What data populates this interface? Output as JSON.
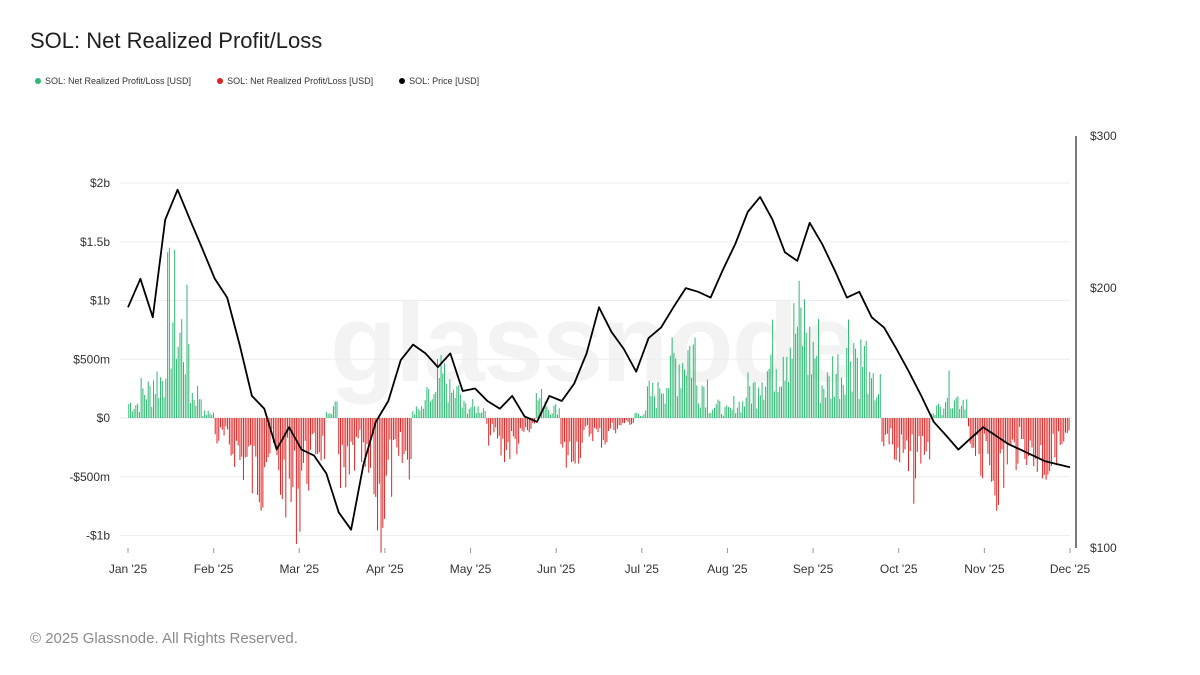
{
  "title": "SOL: Net Realized Profit/Loss",
  "legend": [
    {
      "label": "SOL: Net Realized Profit/Loss [USD]",
      "color": "#2eb872"
    },
    {
      "label": "SOL: Net Realized Profit/Loss [USD]",
      "color": "#e02424"
    },
    {
      "label": "SOL: Price [USD]",
      "color": "#000000"
    }
  ],
  "watermark": "glassnode",
  "footer": "© 2025 Glassnode. All Rights Reserved.",
  "chart_data": {
    "type": "bar",
    "x_ticks": [
      "Jan '25",
      "Feb '25",
      "Mar '25",
      "Apr '25",
      "May '25",
      "Jun '25",
      "Jul '25",
      "Aug '25",
      "Sep '25",
      "Oct '25",
      "Nov '25",
      "Dec '25"
    ],
    "y_left_ticks": [
      {
        "value": 2000000000,
        "label": "$2b"
      },
      {
        "value": 1500000000,
        "label": "$1.5b"
      },
      {
        "value": 1000000000,
        "label": "$1b"
      },
      {
        "value": 500000000,
        "label": "$500m"
      },
      {
        "value": 0,
        "label": "$0"
      },
      {
        "value": -500000000,
        "label": "-$500m"
      },
      {
        "value": -1000000000,
        "label": "-$1b"
      }
    ],
    "y_right_ticks": [
      {
        "value": 300,
        "label": "$300"
      },
      {
        "value": 200,
        "label": "$200"
      },
      {
        "value": 100,
        "label": "$100"
      }
    ],
    "y_left_range": [
      -1100000000,
      2300000000
    ],
    "y_right_range": [
      100,
      300
    ],
    "y_right_scale": "log",
    "colors": {
      "positive": "#2eb872",
      "negative": "#e02424",
      "price": "#000000"
    },
    "grid": true,
    "start_date": "2025-01-01",
    "nrpl_weekly_millions": [
      150,
      280,
      400,
      1100,
      850,
      250,
      50,
      -200,
      -320,
      -450,
      -600,
      -350,
      -650,
      -800,
      -500,
      -300,
      120,
      -750,
      -400,
      -600,
      -900,
      -550,
      -420,
      80,
      200,
      400,
      250,
      120,
      100,
      -180,
      -300,
      -250,
      -150,
      200,
      100,
      -400,
      -300,
      -150,
      -200,
      -100,
      -50,
      50,
      250,
      400,
      600,
      700,
      350,
      120,
      80,
      150,
      300,
      500,
      650,
      850,
      950,
      700,
      350,
      500,
      800,
      600,
      300,
      -200,
      -400,
      -550,
      -300,
      100,
      300,
      200,
      -250,
      -500,
      -600,
      -350,
      -300,
      -400,
      -450,
      -300,
      -200
    ],
    "price_weekly": [
      190,
      205,
      185,
      240,
      260,
      240,
      222,
      205,
      195,
      172,
      150,
      145,
      130,
      138,
      130,
      128,
      122,
      110,
      105,
      125,
      140,
      148,
      165,
      172,
      168,
      162,
      168,
      152,
      153,
      148,
      145,
      150,
      142,
      140,
      150,
      148,
      155,
      168,
      190,
      178,
      170,
      160,
      175,
      180,
      190,
      200,
      198,
      195,
      210,
      225,
      245,
      255,
      240,
      220,
      215,
      238,
      225,
      210,
      195,
      198,
      185,
      180,
      170,
      160,
      150,
      140,
      135,
      130,
      134,
      138,
      135,
      132,
      130,
      128,
      126,
      125,
      124
    ]
  }
}
